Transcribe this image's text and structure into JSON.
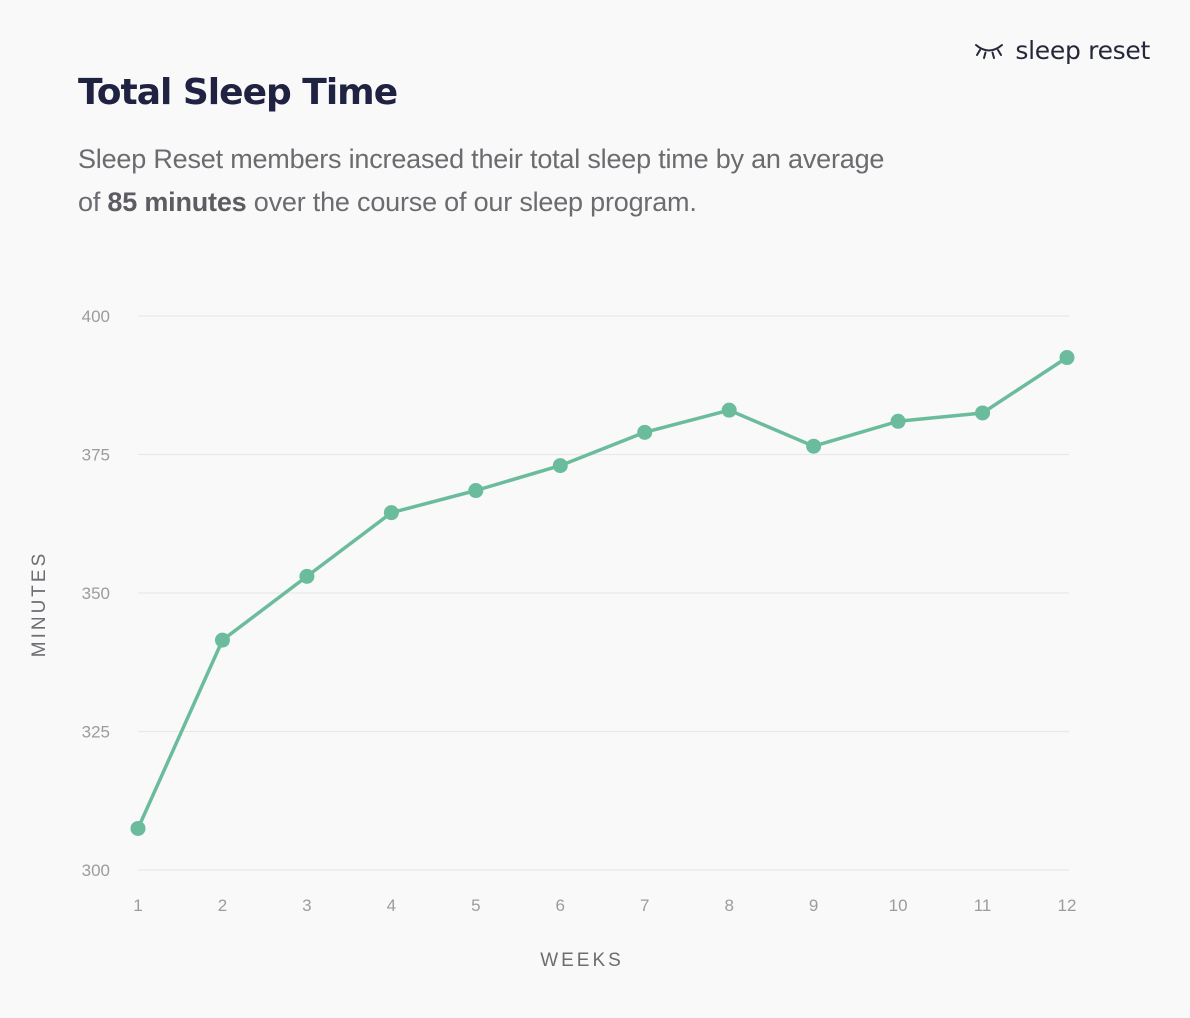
{
  "brand": {
    "name": "sleep reset",
    "logo_icon": "closed-eye-icon"
  },
  "chart_data": {
    "type": "line",
    "title": "Total Sleep Time",
    "subtitle": {
      "before": "Sleep Reset members increased their total sleep time by an average of ",
      "highlight": "85 minutes",
      "after": " over the course of our sleep program."
    },
    "xlabel": "WEEKS",
    "ylabel": "MINUTES",
    "x": [
      1,
      2,
      3,
      4,
      5,
      6,
      7,
      8,
      9,
      10,
      11,
      12
    ],
    "x_tick_labels": [
      "1",
      "2",
      "3",
      "4",
      "5",
      "6",
      "7",
      "8",
      "9",
      "10",
      "11",
      "12"
    ],
    "series": [
      {
        "values": [
          307.5,
          341.5,
          353,
          364.5,
          368.5,
          373,
          379,
          383,
          376.5,
          381,
          382.5,
          392.5
        ],
        "color": "#6bbc9c"
      }
    ],
    "ylim": [
      300,
      400
    ],
    "yticks": [
      300,
      325,
      350,
      375,
      400
    ],
    "y_tick_labels": [
      "300",
      "325",
      "350",
      "375",
      "400"
    ],
    "grid": true,
    "legend": "none"
  }
}
